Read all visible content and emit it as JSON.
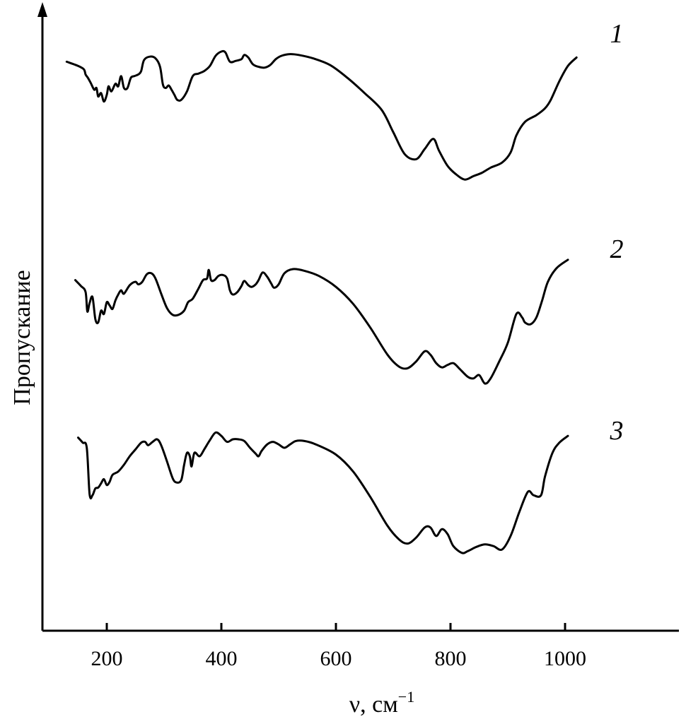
{
  "chart_data": {
    "type": "line",
    "title": "",
    "xlabel": "ν, см",
    "xlabel_sup": "−1",
    "ylabel": "Пропускание",
    "xlim": [
      80,
      1200
    ],
    "x_ticks": [
      "200",
      "400",
      "600",
      "800",
      "1000"
    ],
    "grid": false,
    "y_axis_numbers": false,
    "series": [
      {
        "name": "1",
        "points": [
          [
            130,
            0.83
          ],
          [
            150,
            0.78
          ],
          [
            160,
            0.74
          ],
          [
            163,
            0.68
          ],
          [
            167,
            0.64
          ],
          [
            172,
            0.58
          ],
          [
            178,
            0.5
          ],
          [
            182,
            0.52
          ],
          [
            185,
            0.42
          ],
          [
            190,
            0.46
          ],
          [
            195,
            0.36
          ],
          [
            200,
            0.44
          ],
          [
            203,
            0.54
          ],
          [
            208,
            0.48
          ],
          [
            215,
            0.57
          ],
          [
            220,
            0.54
          ],
          [
            225,
            0.66
          ],
          [
            230,
            0.52
          ],
          [
            236,
            0.52
          ],
          [
            242,
            0.64
          ],
          [
            248,
            0.66
          ],
          [
            255,
            0.68
          ],
          [
            260,
            0.72
          ],
          [
            265,
            0.85
          ],
          [
            275,
            0.89
          ],
          [
            285,
            0.87
          ],
          [
            293,
            0.77
          ],
          [
            298,
            0.56
          ],
          [
            303,
            0.52
          ],
          [
            308,
            0.55
          ],
          [
            313,
            0.5
          ],
          [
            318,
            0.44
          ],
          [
            323,
            0.38
          ],
          [
            330,
            0.38
          ],
          [
            340,
            0.48
          ],
          [
            350,
            0.66
          ],
          [
            360,
            0.69
          ],
          [
            370,
            0.72
          ],
          [
            380,
            0.78
          ],
          [
            390,
            0.9
          ],
          [
            400,
            0.95
          ],
          [
            407,
            0.94
          ],
          [
            415,
            0.83
          ],
          [
            425,
            0.84
          ],
          [
            435,
            0.86
          ],
          [
            440,
            0.91
          ],
          [
            447,
            0.88
          ],
          [
            455,
            0.8
          ],
          [
            465,
            0.77
          ],
          [
            475,
            0.76
          ],
          [
            485,
            0.79
          ],
          [
            495,
            0.86
          ],
          [
            505,
            0.9
          ],
          [
            520,
            0.92
          ],
          [
            535,
            0.91
          ],
          [
            560,
            0.87
          ],
          [
            590,
            0.79
          ],
          [
            620,
            0.64
          ],
          [
            650,
            0.46
          ],
          [
            680,
            0.26
          ],
          [
            700,
            0.0
          ],
          [
            720,
            -0.26
          ],
          [
            740,
            -0.32
          ],
          [
            755,
            -0.2
          ],
          [
            770,
            -0.08
          ],
          [
            780,
            -0.22
          ],
          [
            795,
            -0.4
          ],
          [
            810,
            -0.5
          ],
          [
            825,
            -0.56
          ],
          [
            840,
            -0.52
          ],
          [
            855,
            -0.48
          ],
          [
            870,
            -0.42
          ],
          [
            890,
            -0.36
          ],
          [
            905,
            -0.24
          ],
          [
            915,
            -0.04
          ],
          [
            930,
            0.12
          ],
          [
            950,
            0.2
          ],
          [
            965,
            0.28
          ],
          [
            975,
            0.38
          ],
          [
            990,
            0.6
          ],
          [
            1005,
            0.78
          ],
          [
            1020,
            0.88
          ]
        ]
      },
      {
        "name": "2",
        "points": [
          [
            145,
            0.72
          ],
          [
            155,
            0.65
          ],
          [
            163,
            0.58
          ],
          [
            166,
            0.35
          ],
          [
            170,
            0.45
          ],
          [
            175,
            0.52
          ],
          [
            180,
            0.26
          ],
          [
            185,
            0.22
          ],
          [
            190,
            0.36
          ],
          [
            195,
            0.32
          ],
          [
            200,
            0.46
          ],
          [
            205,
            0.42
          ],
          [
            210,
            0.38
          ],
          [
            215,
            0.48
          ],
          [
            220,
            0.55
          ],
          [
            225,
            0.6
          ],
          [
            230,
            0.56
          ],
          [
            240,
            0.66
          ],
          [
            250,
            0.7
          ],
          [
            255,
            0.67
          ],
          [
            262,
            0.7
          ],
          [
            270,
            0.79
          ],
          [
            278,
            0.8
          ],
          [
            285,
            0.74
          ],
          [
            295,
            0.56
          ],
          [
            305,
            0.39
          ],
          [
            315,
            0.31
          ],
          [
            325,
            0.31
          ],
          [
            335,
            0.36
          ],
          [
            342,
            0.46
          ],
          [
            350,
            0.5
          ],
          [
            360,
            0.62
          ],
          [
            368,
            0.72
          ],
          [
            375,
            0.74
          ],
          [
            378,
            0.84
          ],
          [
            382,
            0.72
          ],
          [
            388,
            0.72
          ],
          [
            395,
            0.77
          ],
          [
            403,
            0.78
          ],
          [
            410,
            0.74
          ],
          [
            415,
            0.6
          ],
          [
            420,
            0.55
          ],
          [
            428,
            0.58
          ],
          [
            435,
            0.65
          ],
          [
            440,
            0.71
          ],
          [
            447,
            0.66
          ],
          [
            453,
            0.64
          ],
          [
            460,
            0.67
          ],
          [
            465,
            0.72
          ],
          [
            472,
            0.81
          ],
          [
            480,
            0.76
          ],
          [
            487,
            0.68
          ],
          [
            492,
            0.63
          ],
          [
            500,
            0.67
          ],
          [
            510,
            0.8
          ],
          [
            525,
            0.85
          ],
          [
            545,
            0.83
          ],
          [
            570,
            0.77
          ],
          [
            600,
            0.64
          ],
          [
            630,
            0.44
          ],
          [
            660,
            0.16
          ],
          [
            690,
            -0.16
          ],
          [
            710,
            -0.3
          ],
          [
            725,
            -0.32
          ],
          [
            740,
            -0.24
          ],
          [
            755,
            -0.12
          ],
          [
            765,
            -0.16
          ],
          [
            775,
            -0.26
          ],
          [
            785,
            -0.31
          ],
          [
            795,
            -0.28
          ],
          [
            805,
            -0.26
          ],
          [
            815,
            -0.32
          ],
          [
            830,
            -0.42
          ],
          [
            840,
            -0.44
          ],
          [
            850,
            -0.4
          ],
          [
            860,
            -0.5
          ],
          [
            870,
            -0.44
          ],
          [
            885,
            -0.24
          ],
          [
            900,
            -0.02
          ],
          [
            915,
            0.32
          ],
          [
            925,
            0.28
          ],
          [
            930,
            0.22
          ],
          [
            940,
            0.2
          ],
          [
            950,
            0.28
          ],
          [
            960,
            0.48
          ],
          [
            970,
            0.7
          ],
          [
            985,
            0.86
          ],
          [
            1005,
            0.96
          ]
        ]
      },
      {
        "name": "3",
        "points": [
          [
            150,
            0.92
          ],
          [
            158,
            0.86
          ],
          [
            165,
            0.8
          ],
          [
            170,
            0.25
          ],
          [
            175,
            0.24
          ],
          [
            180,
            0.32
          ],
          [
            185,
            0.33
          ],
          [
            190,
            0.38
          ],
          [
            195,
            0.43
          ],
          [
            200,
            0.36
          ],
          [
            205,
            0.4
          ],
          [
            210,
            0.48
          ],
          [
            220,
            0.52
          ],
          [
            230,
            0.6
          ],
          [
            240,
            0.7
          ],
          [
            250,
            0.78
          ],
          [
            260,
            0.86
          ],
          [
            267,
            0.87
          ],
          [
            272,
            0.83
          ],
          [
            280,
            0.87
          ],
          [
            288,
            0.9
          ],
          [
            295,
            0.83
          ],
          [
            305,
            0.64
          ],
          [
            315,
            0.44
          ],
          [
            322,
            0.39
          ],
          [
            330,
            0.42
          ],
          [
            335,
            0.6
          ],
          [
            340,
            0.74
          ],
          [
            345,
            0.7
          ],
          [
            348,
            0.58
          ],
          [
            353,
            0.74
          ],
          [
            362,
            0.7
          ],
          [
            370,
            0.78
          ],
          [
            380,
            0.89
          ],
          [
            390,
            0.98
          ],
          [
            400,
            0.94
          ],
          [
            410,
            0.87
          ],
          [
            420,
            0.9
          ],
          [
            430,
            0.9
          ],
          [
            440,
            0.88
          ],
          [
            450,
            0.8
          ],
          [
            460,
            0.73
          ],
          [
            465,
            0.7
          ],
          [
            470,
            0.76
          ],
          [
            480,
            0.84
          ],
          [
            490,
            0.87
          ],
          [
            500,
            0.84
          ],
          [
            510,
            0.8
          ],
          [
            520,
            0.84
          ],
          [
            530,
            0.88
          ],
          [
            545,
            0.88
          ],
          [
            565,
            0.84
          ],
          [
            600,
            0.72
          ],
          [
            630,
            0.52
          ],
          [
            660,
            0.22
          ],
          [
            690,
            -0.12
          ],
          [
            710,
            -0.28
          ],
          [
            725,
            -0.33
          ],
          [
            740,
            -0.26
          ],
          [
            755,
            -0.14
          ],
          [
            765,
            -0.14
          ],
          [
            775,
            -0.24
          ],
          [
            785,
            -0.16
          ],
          [
            795,
            -0.22
          ],
          [
            805,
            -0.36
          ],
          [
            820,
            -0.44
          ],
          [
            830,
            -0.42
          ],
          [
            845,
            -0.37
          ],
          [
            860,
            -0.34
          ],
          [
            875,
            -0.36
          ],
          [
            890,
            -0.4
          ],
          [
            905,
            -0.24
          ],
          [
            920,
            0.04
          ],
          [
            935,
            0.28
          ],
          [
            945,
            0.24
          ],
          [
            958,
            0.24
          ],
          [
            965,
            0.46
          ],
          [
            978,
            0.74
          ],
          [
            990,
            0.86
          ],
          [
            1005,
            0.94
          ]
        ]
      }
    ]
  }
}
